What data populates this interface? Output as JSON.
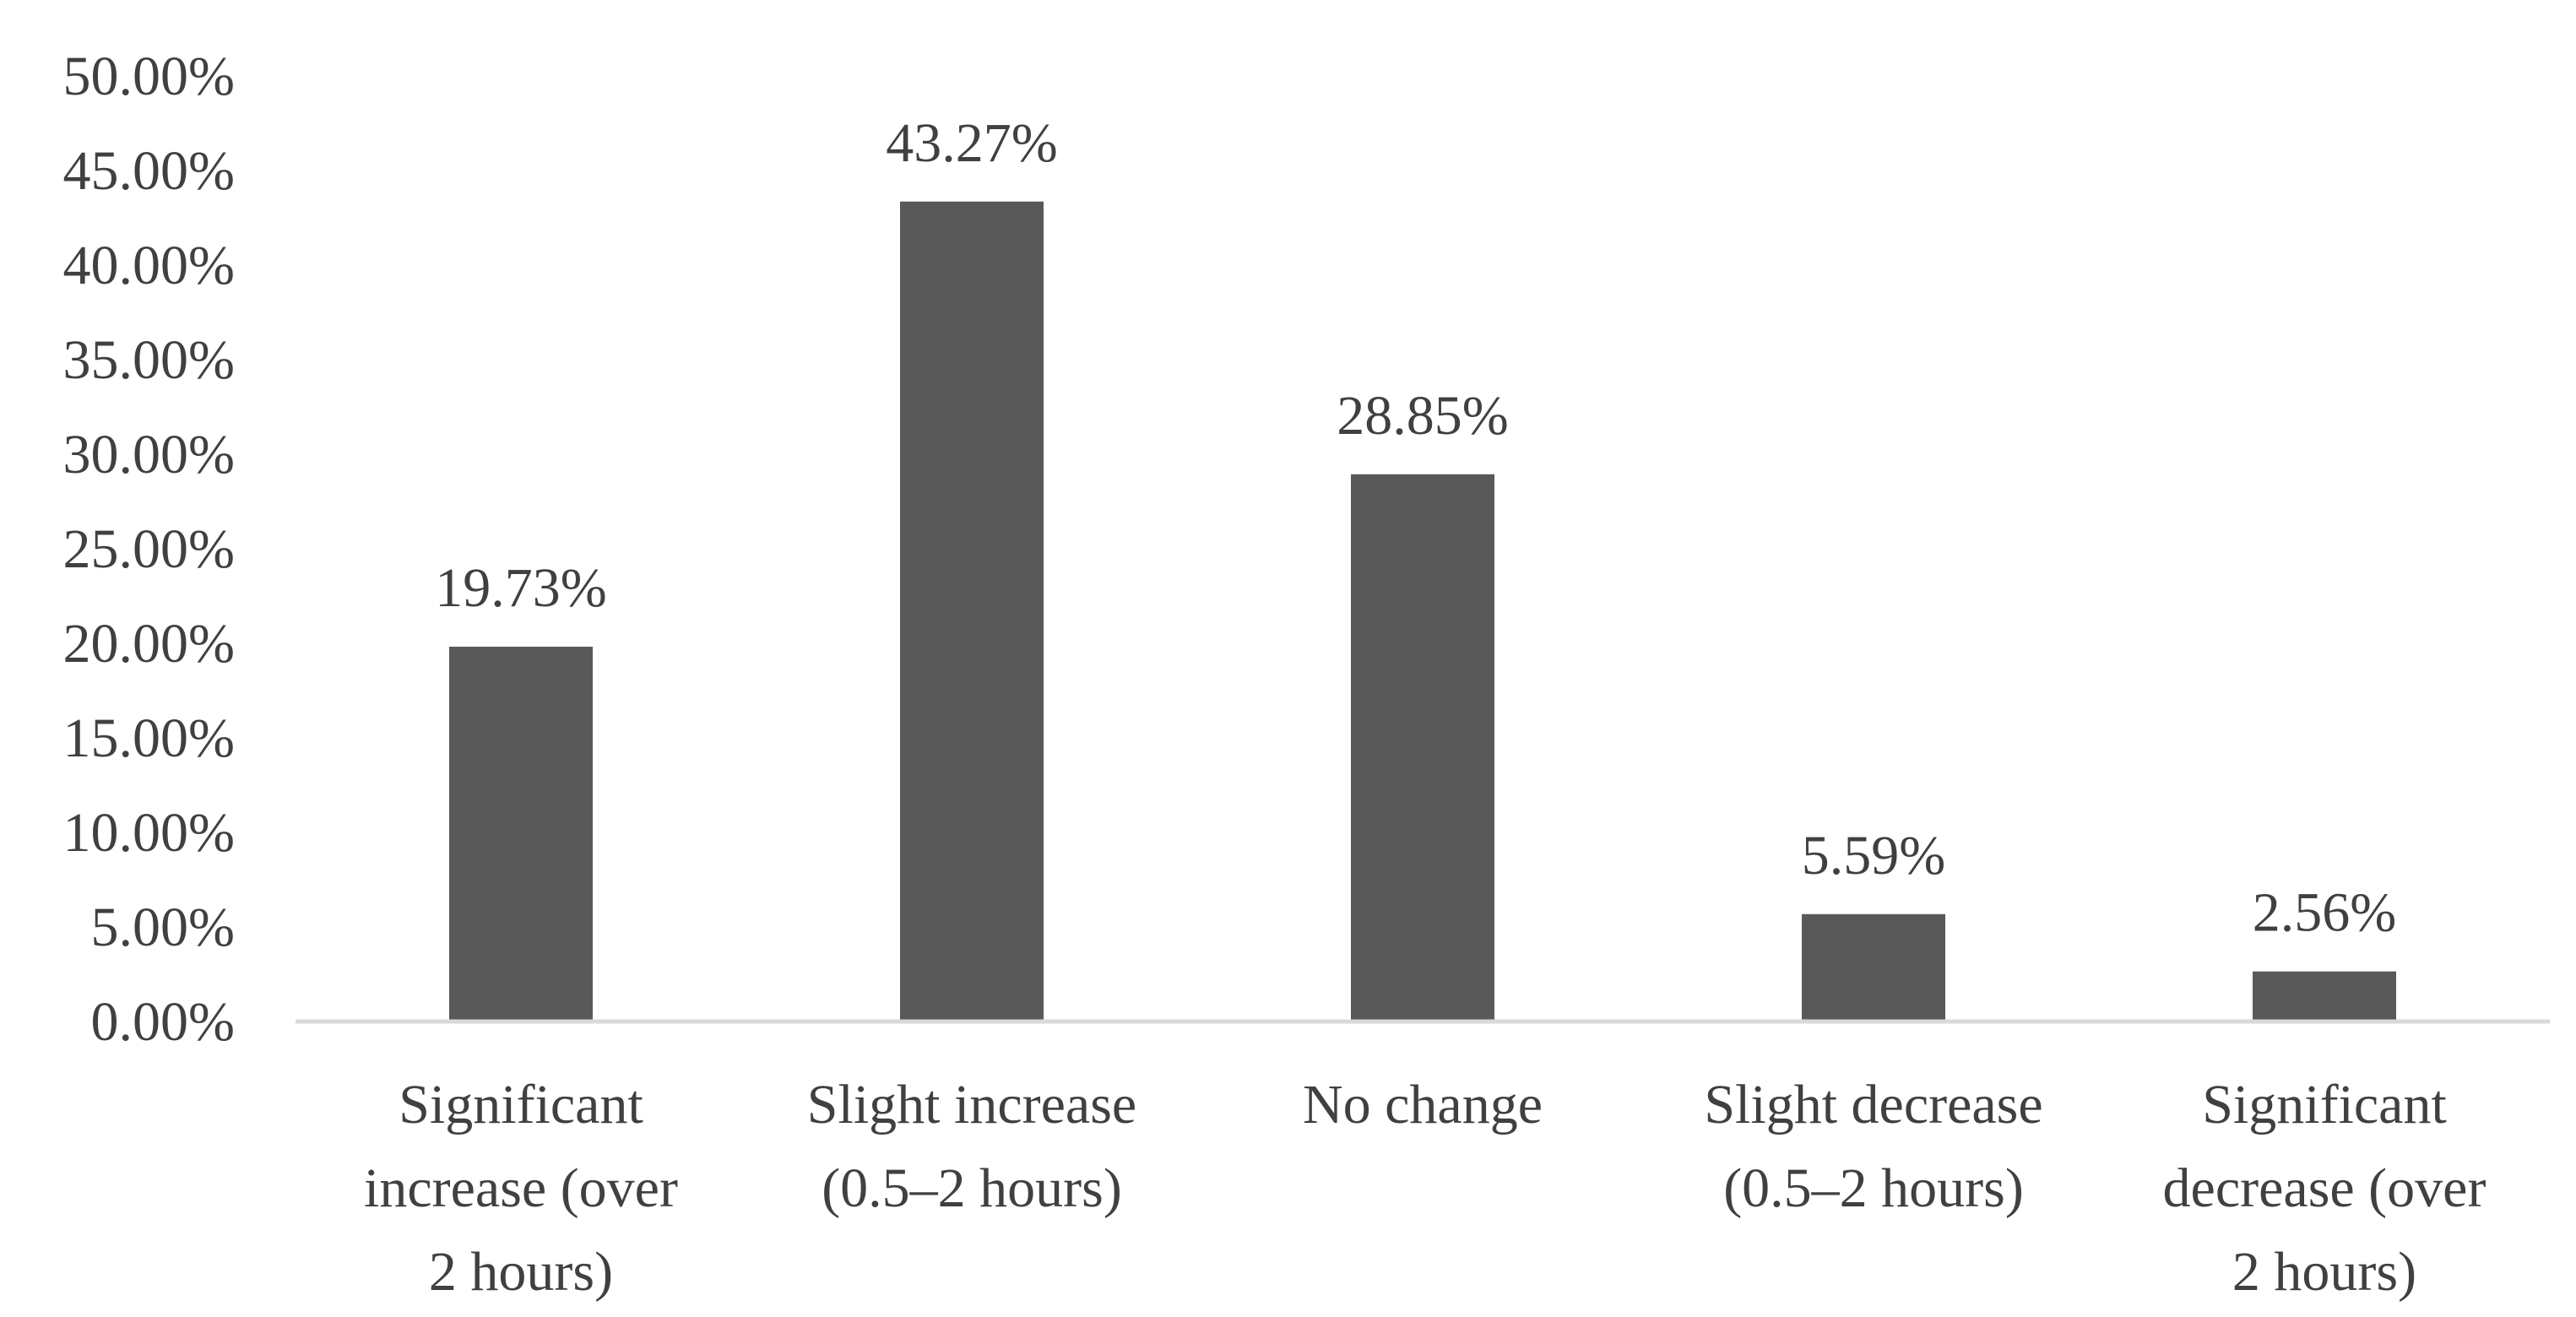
{
  "chart_data": {
    "type": "bar",
    "categories": [
      [
        "Significant",
        "increase (over",
        "2 hours)"
      ],
      [
        "Slight increase",
        "(0.5–2 hours)"
      ],
      [
        "No change"
      ],
      [
        "Slight decrease",
        "(0.5–2 hours)"
      ],
      [
        "Significant",
        "decrease (over",
        "2 hours)"
      ]
    ],
    "values": [
      19.73,
      43.27,
      28.85,
      5.59,
      2.56
    ],
    "data_labels": [
      "19.73%",
      "43.27%",
      "28.85%",
      "5.59%",
      "2.56%"
    ],
    "yticks": [
      "0.00%",
      "5.00%",
      "10.00%",
      "15.00%",
      "20.00%",
      "25.00%",
      "30.00%",
      "35.00%",
      "40.00%",
      "45.00%",
      "50.00%"
    ],
    "ylim": [
      0,
      50
    ],
    "title": "",
    "xlabel": "",
    "ylabel": "",
    "grid": false,
    "legend": "none",
    "colors": {
      "bar": "#595959",
      "axis": "#d9d9d9",
      "text": "#404040"
    }
  }
}
